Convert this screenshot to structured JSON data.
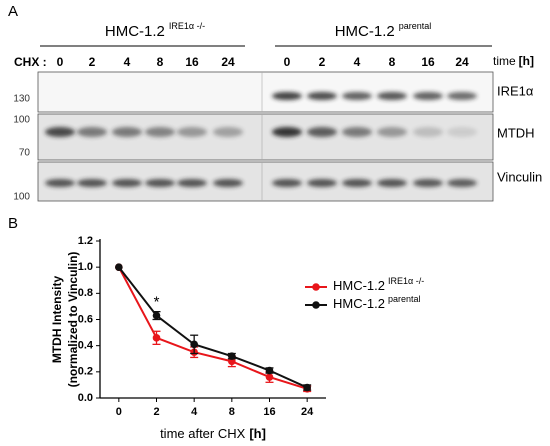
{
  "panel_a": {
    "label": "A",
    "groups": [
      {
        "name": "HMC-1.2",
        "superscript": "IRE1α -/-"
      },
      {
        "name": "HMC-1.2",
        "superscript": "parental"
      }
    ],
    "treatment_label": "CHX :",
    "timepoints": [
      "0",
      "2",
      "4",
      "8",
      "16",
      "24"
    ],
    "time_label": "time",
    "time_unit": "[h]",
    "blots": [
      {
        "name": "IRE1α",
        "markers": [
          "130"
        ]
      },
      {
        "name": "MTDH",
        "markers": [
          "100",
          "70"
        ]
      },
      {
        "name": "Vinculin",
        "markers": [
          "100"
        ]
      }
    ]
  },
  "chart_data": {
    "type": "line",
    "label": "B",
    "y_label": [
      "MTDH Intensity",
      "(normalized to Vinculin)"
    ],
    "x_label": "time after CHX",
    "x_label_unit": "[h]",
    "categories": [
      "0",
      "2",
      "4",
      "8",
      "16",
      "24"
    ],
    "series": [
      {
        "name": "HMC-1.2",
        "name_superscript": "IRE1α -/-",
        "color": "#e8161b",
        "values": [
          1.0,
          0.46,
          0.35,
          0.28,
          0.16,
          0.07
        ],
        "errors": [
          null,
          0.05,
          0.04,
          0.04,
          0.04,
          0.02
        ]
      },
      {
        "name": "HMC-1.2",
        "name_superscript": "parental",
        "color": "#111111",
        "values": [
          1.0,
          0.63,
          0.41,
          0.32,
          0.21,
          0.08
        ],
        "errors": [
          null,
          0.03,
          0.07,
          0.02,
          0.02,
          0.02
        ]
      }
    ],
    "annotation": {
      "text": "*",
      "category": 1
    },
    "ylim": [
      0,
      1.2
    ],
    "yticks": [
      {
        "value": 0,
        "label": "0.0"
      },
      0.2,
      0.4,
      0.6,
      0.8,
      {
        "value": 1,
        "label": "1.0"
      },
      1.2
    ],
    "legend": "upper right"
  }
}
